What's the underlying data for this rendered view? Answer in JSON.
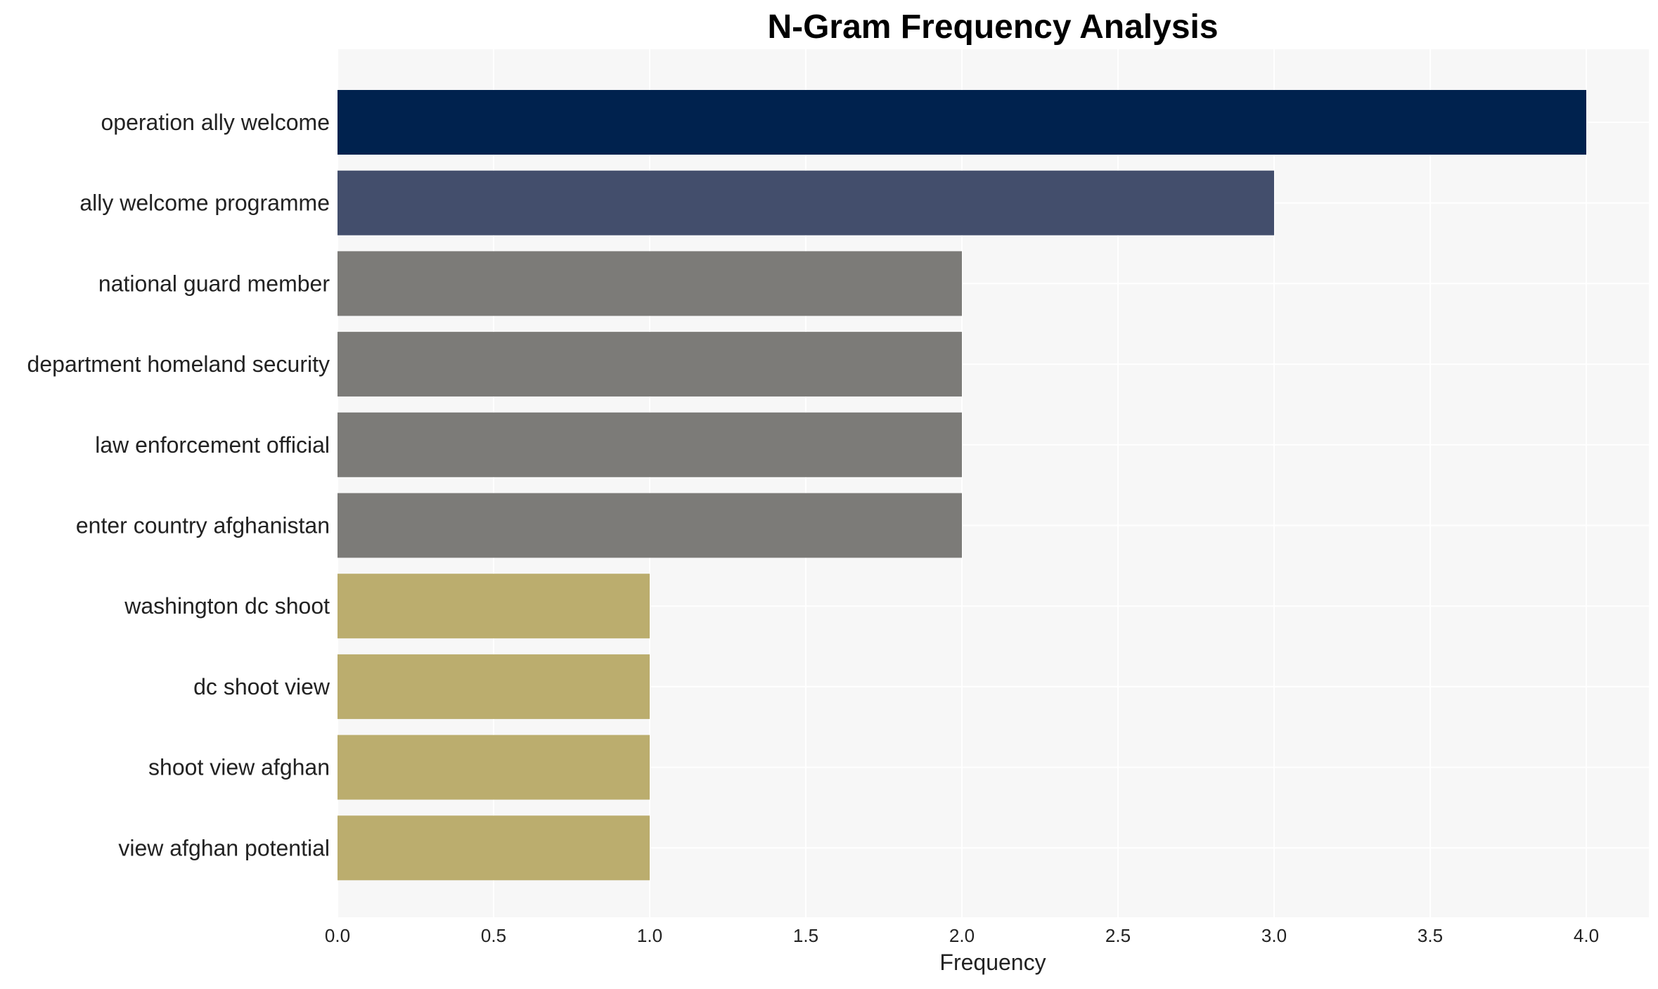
{
  "chart_data": {
    "type": "bar",
    "orientation": "horizontal",
    "title": "N-Gram Frequency Analysis",
    "xlabel": "Frequency",
    "ylabel": "",
    "xlim": [
      0,
      4.2
    ],
    "xticks": [
      "0.0",
      "0.5",
      "1.0",
      "1.5",
      "2.0",
      "2.5",
      "3.0",
      "3.5",
      "4.0"
    ],
    "grid": true,
    "categories": [
      "operation ally welcome",
      "ally welcome programme",
      "national guard member",
      "department homeland security",
      "law enforcement official",
      "enter country afghanistan",
      "washington dc shoot",
      "dc shoot view",
      "shoot view afghan",
      "view afghan potential"
    ],
    "values": [
      4,
      3,
      2,
      2,
      2,
      2,
      1,
      1,
      1,
      1
    ],
    "colors": {
      "4": "#00224e",
      "3": "#434e6c",
      "2": "#7c7b78",
      "1": "#bbad6e"
    },
    "plot_background": "#f7f7f7",
    "grid_color": "#ffffff"
  }
}
